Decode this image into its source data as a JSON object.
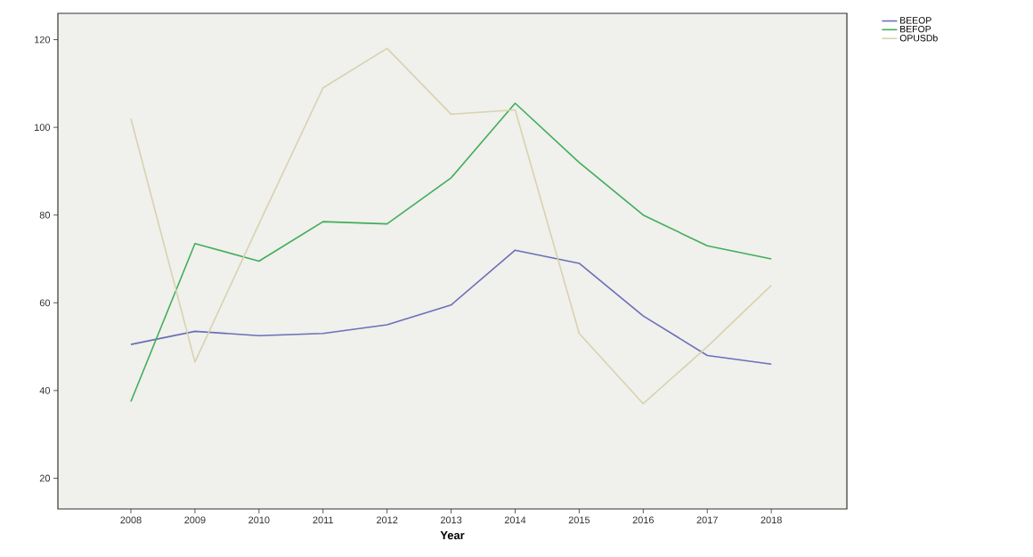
{
  "chart_data": {
    "type": "line",
    "xlabel": "Year",
    "categories": [
      "2008",
      "2009",
      "2010",
      "2011",
      "2012",
      "2013",
      "2014",
      "2015",
      "2016",
      "2017",
      "2018"
    ],
    "series": [
      {
        "name": "BEEOP",
        "color": "#6a6fb8",
        "values": [
          50.5,
          53.5,
          52.5,
          53,
          55,
          59.5,
          72,
          69,
          57,
          48,
          46
        ]
      },
      {
        "name": "BEFOP",
        "color": "#3fae5a",
        "values": [
          37.5,
          73.5,
          69.5,
          78.5,
          78,
          88.5,
          105.5,
          92,
          80,
          73,
          70
        ]
      },
      {
        "name": "OPUSDb",
        "color": "#d8d2b0",
        "values": [
          102,
          46.5,
          78,
          109,
          118,
          103,
          104,
          53,
          37,
          50,
          64
        ]
      }
    ],
    "ylim": [
      13,
      126
    ],
    "yticks": [
      20,
      40,
      60,
      80,
      100,
      120
    ],
    "grid": false,
    "legend": "top right",
    "marker": "none",
    "line_style": "solid"
  }
}
